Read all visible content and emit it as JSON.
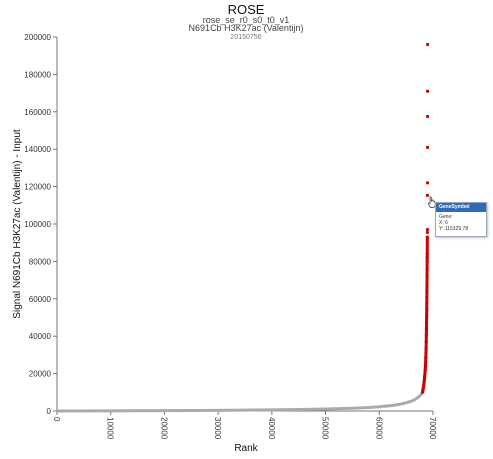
{
  "chart_data": {
    "type": "scatter",
    "title": "ROSE",
    "subtitle": "rose_se_r0_s0_t0_v1",
    "subtitle2": "N691Cb H3K27ac (Valentijn)",
    "subtitle3": "20150756",
    "xlabel": "Rank",
    "ylabel": "Signal N691Cb H3K27ac (Valentijn) - Input",
    "xlim": [
      0,
      70000
    ],
    "ylim": [
      0,
      200000
    ],
    "xticks": [
      "0",
      "10000",
      "20000",
      "30000",
      "40000",
      "50000",
      "60000",
      "70000"
    ],
    "xtick_values": [
      0,
      10000,
      20000,
      30000,
      40000,
      50000,
      60000,
      70000
    ],
    "yticks": [
      "0",
      "20000",
      "40000",
      "60000",
      "80000",
      "100000",
      "120000",
      "140000",
      "160000",
      "180000",
      "200000"
    ],
    "ytick_values": [
      0,
      20000,
      40000,
      60000,
      80000,
      100000,
      120000,
      140000,
      160000,
      180000,
      200000
    ],
    "series": [
      {
        "color": "#aaaaaa",
        "x": [
          0,
          10000,
          20000,
          30000,
          40000,
          45000,
          50000,
          55000,
          58000,
          60000,
          62000,
          63000,
          64000,
          65000,
          66000,
          66500,
          67000,
          67500,
          68000
        ],
        "y": [
          0,
          100,
          200,
          350,
          600,
          800,
          1100,
          1500,
          1900,
          2300,
          2800,
          3200,
          3700,
          4400,
          5300,
          5900,
          6800,
          8000,
          9500
        ]
      },
      {
        "color": "#cc0000",
        "x": [
          68050,
          68100,
          68150,
          68200,
          68250,
          68300,
          68350,
          68400,
          68450,
          68500,
          68550,
          68600,
          68630,
          68660,
          68690,
          68720,
          68740,
          68760,
          68780,
          68800,
          68820,
          68840,
          68850,
          68860,
          68870,
          68880,
          68890,
          68900,
          68910,
          68920,
          68930,
          68940,
          68950,
          68960,
          68970,
          68980,
          68985,
          68990,
          68993,
          68995
        ],
        "y": [
          10000,
          10800,
          11600,
          12500,
          13500,
          14500,
          15800,
          17000,
          18500,
          20000,
          22000,
          24000,
          26000,
          28500,
          31000,
          34000,
          37000,
          40500,
          44000,
          47500,
          51000,
          54500,
          58000,
          61000,
          64000,
          66500,
          72000,
          76000,
          80000,
          82000,
          84000,
          93000,
          95500,
          97000,
          115329.78,
          122000,
          141000,
          157500,
          171000,
          196000
        ]
      }
    ],
    "tooltip": {
      "title": "GeneSymbol",
      "line1": "Gene:",
      "line2": "X: 6",
      "line3": "Y: 115329.78"
    },
    "grid": false
  }
}
